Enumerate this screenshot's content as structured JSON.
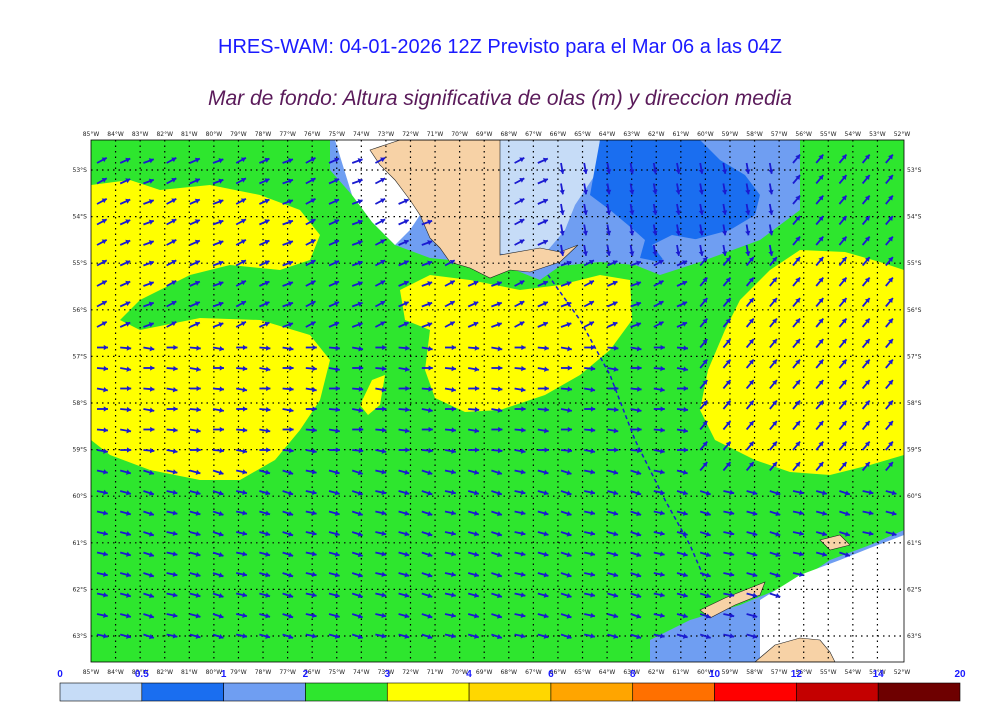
{
  "title": "HRES-WAM: 04-01-2026 12Z Previsto para el Mar 06 a las 04Z",
  "subtitle": "Mar de fondo: Altura significativa de olas (m) y direccion media",
  "longitude_labels": [
    "85°W",
    "84°W",
    "83°W",
    "82°W",
    "81°W",
    "80°W",
    "79°W",
    "78°W",
    "77°W",
    "76°W",
    "75°W",
    "74°W",
    "73°W",
    "72°W",
    "71°W",
    "70°W",
    "69°W",
    "68°W",
    "67°W",
    "66°W",
    "65°W",
    "64°W",
    "63°W",
    "62°W",
    "61°W",
    "60°W",
    "59°W",
    "58°W",
    "57°W",
    "56°W",
    "55°W",
    "54°W",
    "53°W",
    "52°W"
  ],
  "latitude_labels": [
    "53°S",
    "54°S",
    "55°S",
    "56°S",
    "57°S",
    "58°S",
    "59°S",
    "60°S",
    "61°S",
    "62°S",
    "63°S"
  ],
  "colorbar": {
    "ticks": [
      "0",
      "0.5",
      "1",
      "2",
      "3",
      "4",
      "6",
      "8",
      "10",
      "12",
      "14",
      "20"
    ],
    "colors": [
      "#c6dcf7",
      "#1a6ef0",
      "#6f9ef2",
      "#2ee62e",
      "#ffff00",
      "#ffd700",
      "#ffa500",
      "#ff7000",
      "#ff0000",
      "#c40000",
      "#6e0000",
      "#404040"
    ]
  },
  "colors": {
    "land": "#f7d2a6",
    "ice_white": "#ffffff",
    "wave_0_0.5": "#c6dcf7",
    "wave_0.5_1": "#1a6ef0",
    "wave_1_2": "#6f9ef2",
    "wave_2_3": "#2ee62e",
    "wave_3_4": "#ffff00",
    "arrow": "#1a1ad0",
    "title": "#1a1aff",
    "subtitle": "#5a1a5a"
  }
}
